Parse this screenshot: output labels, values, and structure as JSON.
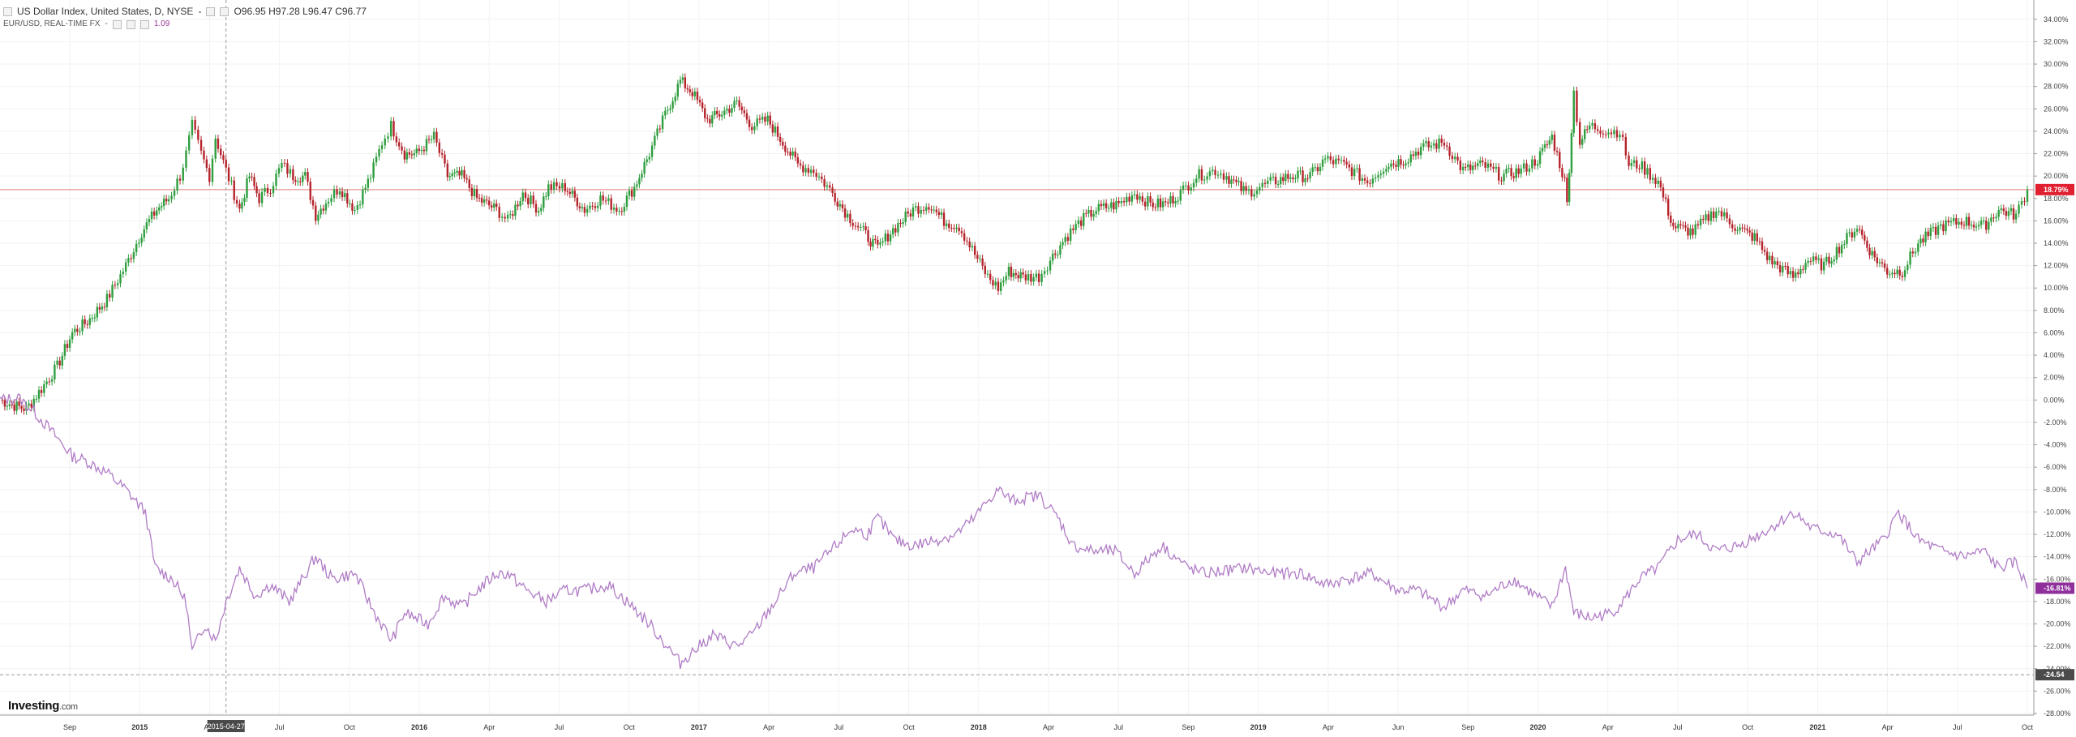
{
  "legend": {
    "main_title": "US Dollar Index, United States, D, NYSE",
    "main_dash": "-",
    "ohlc": [
      {
        "k": "O",
        "v": "96.95"
      },
      {
        "k": "H",
        "v": "97.28"
      },
      {
        "k": "L",
        "v": "96.47"
      },
      {
        "k": "C",
        "v": "96.77"
      }
    ],
    "compare_title": "EUR/USD, REAL-TIME FX",
    "compare_dash": "-",
    "compare_value": "1.09"
  },
  "logo": {
    "name": "Investing",
    "domain": ".com"
  },
  "crosshair_date": "2015-04-27",
  "colors": {
    "up": "#2e9e3e",
    "down": "#b5232b",
    "eurusd": "#b07cc6",
    "usd_badge": "#e02030",
    "eur_badge": "#8e2f9c",
    "ref_line": "#e07a7a",
    "crosshair_badge": "#4a4a4a"
  },
  "chart_data": {
    "type": "line",
    "y_unit": "%",
    "ylim": [
      -28,
      35
    ],
    "y_ticks": [
      "34.00%",
      "32.00%",
      "30.00%",
      "28.00%",
      "26.00%",
      "24.00%",
      "22.00%",
      "20.00%",
      "18.00%",
      "16.00%",
      "14.00%",
      "12.00%",
      "10.00%",
      "8.00%",
      "6.00%",
      "4.00%",
      "2.00%",
      "0.00%",
      "-2.00%",
      "-4.00%",
      "-6.00%",
      "-8.00%",
      "-10.00%",
      "-12.00%",
      "-14.00%",
      "-16.00%",
      "-18.00%",
      "-20.00%",
      "-22.00%",
      "-24.00%",
      "-26.00%",
      "-28.00%"
    ],
    "x_labels": [
      "Sep",
      "2015",
      "Apr",
      "Jul",
      "Oct",
      "2016",
      "Apr",
      "Jul",
      "Oct",
      "2017",
      "Apr",
      "Jul",
      "Oct",
      "2018",
      "Apr",
      "Jul",
      "Sep",
      "2019",
      "Apr",
      "Jun",
      "Sep",
      "2020",
      "Apr",
      "Jul",
      "Oct",
      "2021",
      "Apr",
      "Jul",
      "Oct"
    ],
    "x_start": "2014-07-01",
    "x_end": "2021-11-12",
    "bold_labels": [
      "2015",
      "2016",
      "2017",
      "2018",
      "2019",
      "2020",
      "2021"
    ],
    "current_badges": [
      {
        "label": "18.79%",
        "value": 18.79,
        "series": "usd"
      },
      {
        "label": "-16.81%",
        "value": -16.81,
        "series": "eur"
      },
      {
        "label": "-24.54",
        "value": -24.54,
        "series": "crosshair"
      }
    ],
    "reference_line": 18.79,
    "series": [
      {
        "id": "usd",
        "style": "candles",
        "points": [
          [
            "2014-07-01",
            0
          ],
          [
            "2014-07-20",
            -0.5
          ],
          [
            "2014-08-05",
            -0.8
          ],
          [
            "2014-08-25",
            1
          ],
          [
            "2014-09-15",
            3
          ],
          [
            "2014-10-05",
            6
          ],
          [
            "2014-10-25",
            7
          ],
          [
            "2014-11-20",
            9
          ],
          [
            "2014-12-15",
            12
          ],
          [
            "2015-01-05",
            15
          ],
          [
            "2015-01-25",
            17
          ],
          [
            "2015-02-10",
            18
          ],
          [
            "2015-02-25",
            20
          ],
          [
            "2015-03-05",
            22
          ],
          [
            "2015-03-13",
            24.5
          ],
          [
            "2015-03-25",
            22
          ],
          [
            "2015-04-05",
            20
          ],
          [
            "2015-04-13",
            23.5
          ],
          [
            "2015-04-27",
            20.5
          ],
          [
            "2015-05-15",
            17
          ],
          [
            "2015-05-28",
            20
          ],
          [
            "2015-06-10",
            18
          ],
          [
            "2015-06-25",
            19
          ],
          [
            "2015-07-10",
            21
          ],
          [
            "2015-07-25",
            20
          ],
          [
            "2015-08-10",
            20
          ],
          [
            "2015-08-24",
            16.5
          ],
          [
            "2015-09-10",
            18
          ],
          [
            "2015-09-25",
            19
          ],
          [
            "2015-10-15",
            17
          ],
          [
            "2015-11-05",
            20
          ],
          [
            "2015-11-20",
            23
          ],
          [
            "2015-12-02",
            24.5
          ],
          [
            "2015-12-20",
            22
          ],
          [
            "2016-01-05",
            22
          ],
          [
            "2016-01-28",
            23.5
          ],
          [
            "2016-02-15",
            20
          ],
          [
            "2016-03-05",
            20
          ],
          [
            "2016-03-25",
            18
          ],
          [
            "2016-04-20",
            17
          ],
          [
            "2016-05-05",
            16
          ],
          [
            "2016-05-25",
            18.5
          ],
          [
            "2016-06-15",
            17
          ],
          [
            "2016-06-28",
            19
          ],
          [
            "2016-07-20",
            19
          ],
          [
            "2016-08-15",
            17
          ],
          [
            "2016-09-05",
            18
          ],
          [
            "2016-09-30",
            17
          ],
          [
            "2016-10-20",
            19
          ],
          [
            "2016-11-09",
            22
          ],
          [
            "2016-11-30",
            25.5
          ],
          [
            "2016-12-20",
            28.5
          ],
          [
            "2017-01-05",
            27.5
          ],
          [
            "2017-01-25",
            25
          ],
          [
            "2017-02-10",
            25.5
          ],
          [
            "2017-03-05",
            26.5
          ],
          [
            "2017-03-25",
            24.5
          ],
          [
            "2017-04-15",
            25
          ],
          [
            "2017-05-05",
            23
          ],
          [
            "2017-05-25",
            21
          ],
          [
            "2017-06-15",
            20.5
          ],
          [
            "2017-07-10",
            18.5
          ],
          [
            "2017-07-30",
            16.5
          ],
          [
            "2017-08-20",
            15
          ],
          [
            "2017-09-08",
            13.5
          ],
          [
            "2017-09-25",
            15
          ],
          [
            "2017-10-25",
            17
          ],
          [
            "2017-11-15",
            17.5
          ],
          [
            "2017-12-05",
            16
          ],
          [
            "2017-12-25",
            15.5
          ],
          [
            "2018-01-15",
            13
          ],
          [
            "2018-02-01",
            11
          ],
          [
            "2018-02-15",
            10
          ],
          [
            "2018-03-01",
            11.5
          ],
          [
            "2018-03-20",
            11
          ],
          [
            "2018-04-10",
            11
          ],
          [
            "2018-04-25",
            12.5
          ],
          [
            "2018-05-15",
            14.5
          ],
          [
            "2018-06-05",
            16
          ],
          [
            "2018-06-25",
            17
          ],
          [
            "2018-07-25",
            17.5
          ],
          [
            "2018-08-15",
            18.5
          ],
          [
            "2018-09-05",
            17.5
          ],
          [
            "2018-09-25",
            17.5
          ],
          [
            "2018-10-15",
            18.5
          ],
          [
            "2018-11-05",
            20
          ],
          [
            "2018-11-30",
            20.5
          ],
          [
            "2018-12-15",
            20
          ],
          [
            "2019-01-10",
            18.5
          ],
          [
            "2019-02-15",
            19.5
          ],
          [
            "2019-03-10",
            20
          ],
          [
            "2019-04-05",
            20
          ],
          [
            "2019-04-25",
            21.5
          ],
          [
            "2019-05-20",
            21
          ],
          [
            "2019-06-20",
            19.5
          ],
          [
            "2019-07-15",
            21
          ],
          [
            "2019-08-10",
            21.5
          ],
          [
            "2019-08-30",
            22.5
          ],
          [
            "2019-09-30",
            23
          ],
          [
            "2019-10-25",
            20.5
          ],
          [
            "2019-11-20",
            21
          ],
          [
            "2019-12-15",
            20
          ],
          [
            "2020-01-10",
            20.5
          ],
          [
            "2020-02-01",
            21.5
          ],
          [
            "2020-02-20",
            23.5
          ],
          [
            "2020-03-08",
            19.5
          ],
          [
            "2020-03-11",
            17.5
          ],
          [
            "2020-03-20",
            27.5
          ],
          [
            "2020-03-28",
            23
          ],
          [
            "2020-04-10",
            24.5
          ],
          [
            "2020-05-05",
            24
          ],
          [
            "2020-05-20",
            24
          ],
          [
            "2020-06-01",
            21
          ],
          [
            "2020-06-15",
            21
          ],
          [
            "2020-07-10",
            19.5
          ],
          [
            "2020-07-30",
            15.5
          ],
          [
            "2020-08-25",
            15
          ],
          [
            "2020-09-25",
            17
          ],
          [
            "2020-10-20",
            15.5
          ],
          [
            "2020-11-15",
            14.5
          ],
          [
            "2020-12-05",
            12.5
          ],
          [
            "2021-01-05",
            11
          ],
          [
            "2021-01-25",
            12.5
          ],
          [
            "2021-02-15",
            12
          ],
          [
            "2021-03-31",
            15.5
          ],
          [
            "2021-04-20",
            13
          ],
          [
            "2021-05-10",
            11.5
          ],
          [
            "2021-05-30",
            11.5
          ],
          [
            "2021-06-20",
            14
          ],
          [
            "2021-07-20",
            15.5
          ],
          [
            "2021-08-20",
            16
          ],
          [
            "2021-09-15",
            15.5
          ],
          [
            "2021-10-05",
            17
          ],
          [
            "2021-10-28",
            16.5
          ],
          [
            "2021-11-12",
            18.79
          ]
        ]
      },
      {
        "id": "eur",
        "style": "line",
        "points": [
          [
            "2014-07-01",
            0
          ],
          [
            "2014-07-25",
            0.2
          ],
          [
            "2014-08-15",
            -1
          ],
          [
            "2014-09-10",
            -3
          ],
          [
            "2014-10-05",
            -5
          ],
          [
            "2014-10-25",
            -5.5
          ],
          [
            "2014-11-20",
            -6.5
          ],
          [
            "2014-12-15",
            -8
          ],
          [
            "2015-01-10",
            -10
          ],
          [
            "2015-01-23",
            -15
          ],
          [
            "2015-02-15",
            -16
          ],
          [
            "2015-03-05",
            -18
          ],
          [
            "2015-03-13",
            -22.5
          ],
          [
            "2015-03-30",
            -20
          ],
          [
            "2015-04-13",
            -21.5
          ],
          [
            "2015-04-27",
            -18
          ],
          [
            "2015-05-15",
            -15
          ],
          [
            "2015-06-05",
            -17.5
          ],
          [
            "2015-06-25",
            -16.5
          ],
          [
            "2015-07-20",
            -18
          ],
          [
            "2015-08-24",
            -14
          ],
          [
            "2015-09-15",
            -16
          ],
          [
            "2015-10-15",
            -15.5
          ],
          [
            "2015-11-10",
            -19
          ],
          [
            "2015-12-03",
            -21.5
          ],
          [
            "2015-12-20",
            -19
          ],
          [
            "2016-01-20",
            -20
          ],
          [
            "2016-02-10",
            -17.5
          ],
          [
            "2016-03-05",
            -18.5
          ],
          [
            "2016-03-25",
            -17
          ],
          [
            "2016-04-20",
            -15.5
          ],
          [
            "2016-05-05",
            -15.5
          ],
          [
            "2016-05-30",
            -17
          ],
          [
            "2016-06-25",
            -18
          ],
          [
            "2016-07-20",
            -17
          ],
          [
            "2016-08-15",
            -17
          ],
          [
            "2016-09-15",
            -16.5
          ],
          [
            "2016-10-10",
            -18
          ],
          [
            "2016-11-09",
            -20
          ],
          [
            "2016-12-20",
            -23.5
          ],
          [
            "2017-01-05",
            -22.5
          ],
          [
            "2017-02-01",
            -21
          ],
          [
            "2017-03-05",
            -22
          ],
          [
            "2017-03-25",
            -21
          ],
          [
            "2017-04-25",
            -18
          ],
          [
            "2017-05-20",
            -15.5
          ],
          [
            "2017-06-15",
            -15
          ],
          [
            "2017-07-15",
            -13
          ],
          [
            "2017-08-05",
            -11.5
          ],
          [
            "2017-08-25",
            -12
          ],
          [
            "2017-09-08",
            -10.5
          ],
          [
            "2017-09-30",
            -12.5
          ],
          [
            "2017-10-25",
            -13
          ],
          [
            "2017-11-25",
            -12.5
          ],
          [
            "2017-12-20",
            -12
          ],
          [
            "2018-01-15",
            -10.5
          ],
          [
            "2018-02-01",
            -9
          ],
          [
            "2018-02-15",
            -8
          ],
          [
            "2018-03-05",
            -9
          ],
          [
            "2018-04-10",
            -8.5
          ],
          [
            "2018-05-05",
            -10.5
          ],
          [
            "2018-05-25",
            -13
          ],
          [
            "2018-06-20",
            -13.5
          ],
          [
            "2018-07-20",
            -13.5
          ],
          [
            "2018-08-15",
            -15.5
          ],
          [
            "2018-09-20",
            -13
          ],
          [
            "2018-10-25",
            -15
          ],
          [
            "2018-11-15",
            -15.5
          ],
          [
            "2019-01-10",
            -15
          ],
          [
            "2019-02-15",
            -15.5
          ],
          [
            "2019-03-25",
            -15.5
          ],
          [
            "2019-04-25",
            -16.5
          ],
          [
            "2019-05-25",
            -16
          ],
          [
            "2019-06-25",
            -15.5
          ],
          [
            "2019-07-30",
            -17
          ],
          [
            "2019-08-25",
            -17
          ],
          [
            "2019-09-30",
            -18.5
          ],
          [
            "2019-10-25",
            -17
          ],
          [
            "2019-11-25",
            -17.5
          ],
          [
            "2019-12-30",
            -16
          ],
          [
            "2020-02-20",
            -18.5
          ],
          [
            "2020-03-09",
            -15
          ],
          [
            "2020-03-20",
            -19
          ],
          [
            "2020-04-10",
            -19.5
          ],
          [
            "2020-05-10",
            -19
          ],
          [
            "2020-05-30",
            -17.5
          ],
          [
            "2020-06-15",
            -16
          ],
          [
            "2020-07-10",
            -15
          ],
          [
            "2020-08-05",
            -12.5
          ],
          [
            "2020-08-30",
            -12
          ],
          [
            "2020-09-25",
            -13.5
          ],
          [
            "2020-10-25",
            -13
          ],
          [
            "2020-12-05",
            -11.5
          ],
          [
            "2021-01-06",
            -10
          ],
          [
            "2021-01-30",
            -11.5
          ],
          [
            "2021-03-05",
            -12
          ],
          [
            "2021-03-31",
            -14.5
          ],
          [
            "2021-05-05",
            -12.5
          ],
          [
            "2021-05-25",
            -10
          ],
          [
            "2021-06-20",
            -12.5
          ],
          [
            "2021-07-20",
            -13.5
          ],
          [
            "2021-08-20",
            -14
          ],
          [
            "2021-09-15",
            -13.5
          ],
          [
            "2021-10-05",
            -15
          ],
          [
            "2021-10-28",
            -14.5
          ],
          [
            "2021-11-12",
            -16.81
          ]
        ]
      }
    ]
  }
}
